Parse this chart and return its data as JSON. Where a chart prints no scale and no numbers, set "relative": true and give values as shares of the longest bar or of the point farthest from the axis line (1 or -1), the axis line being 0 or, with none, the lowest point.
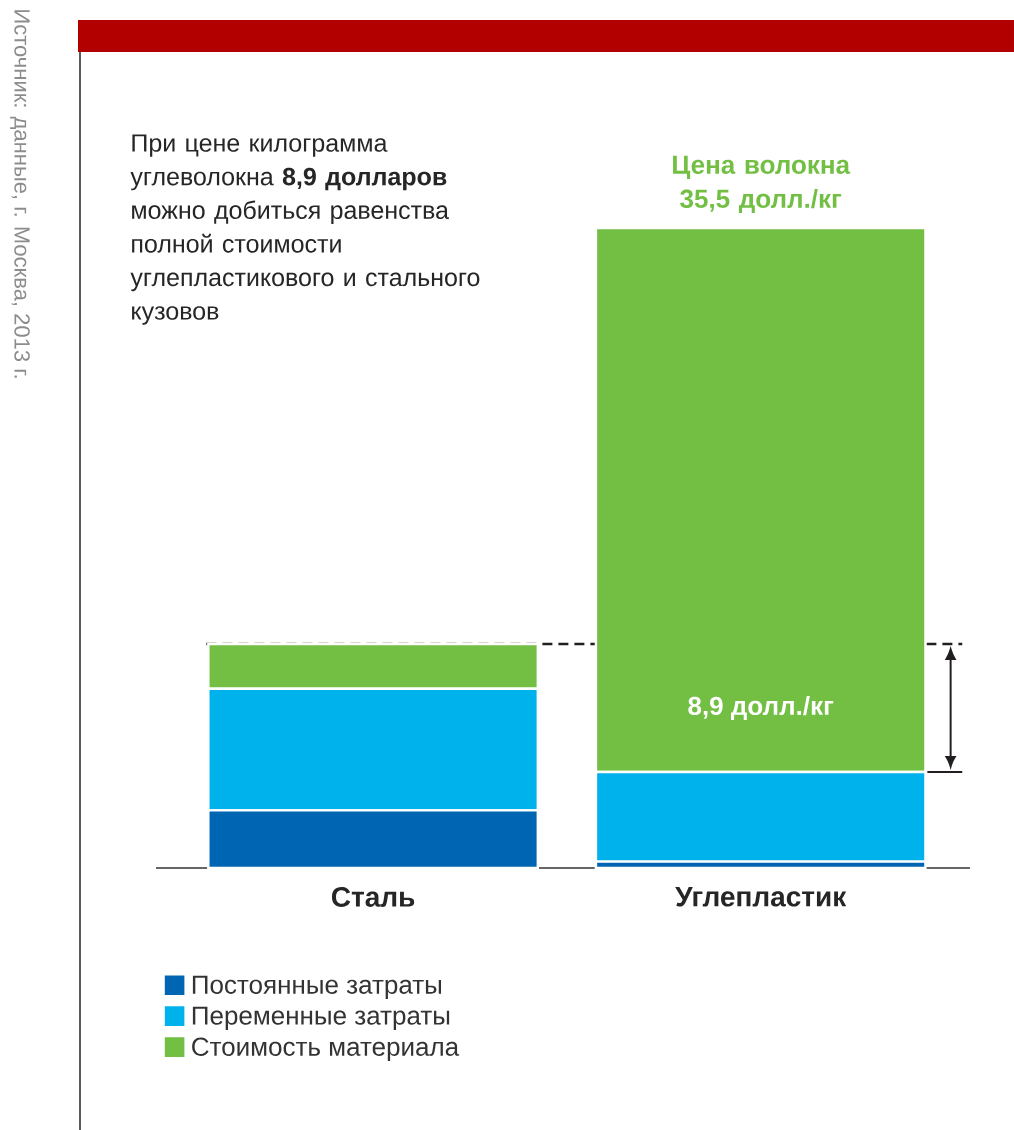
{
  "chart_data": {
    "type": "bar",
    "stacked": true,
    "relative": true,
    "categories": [
      "Сталь",
      "Углепластик"
    ],
    "series": [
      {
        "name": "Постоянные затраты",
        "color": "#0066b3",
        "values": [
          0.09,
          0.01
        ]
      },
      {
        "name": "Переменные затраты",
        "color": "#00b2ec",
        "values": [
          0.19,
          0.14
        ]
      },
      {
        "name": "Стоимость материала",
        "color": "#72bf44",
        "values": [
          0.07,
          0.85
        ]
      }
    ],
    "ref_lines": [
      {
        "axis": "y",
        "value": 0.35,
        "line_style": "dashed",
        "color": "#231f20"
      }
    ],
    "annotations": [
      "При цене килограмма углеволокна **8,9 долларов** можно добиться равенства полной стоимости углепластикового и стального кузовов",
      "Источник: данные, г. Москва, 2013 г.",
      {
        "text": "Цена волокна 35,5 долл./кг",
        "x": "Углепластик",
        "y": 1.0
      },
      "8,9 долл./кг"
    ],
    "legend": "bottom"
  }
}
